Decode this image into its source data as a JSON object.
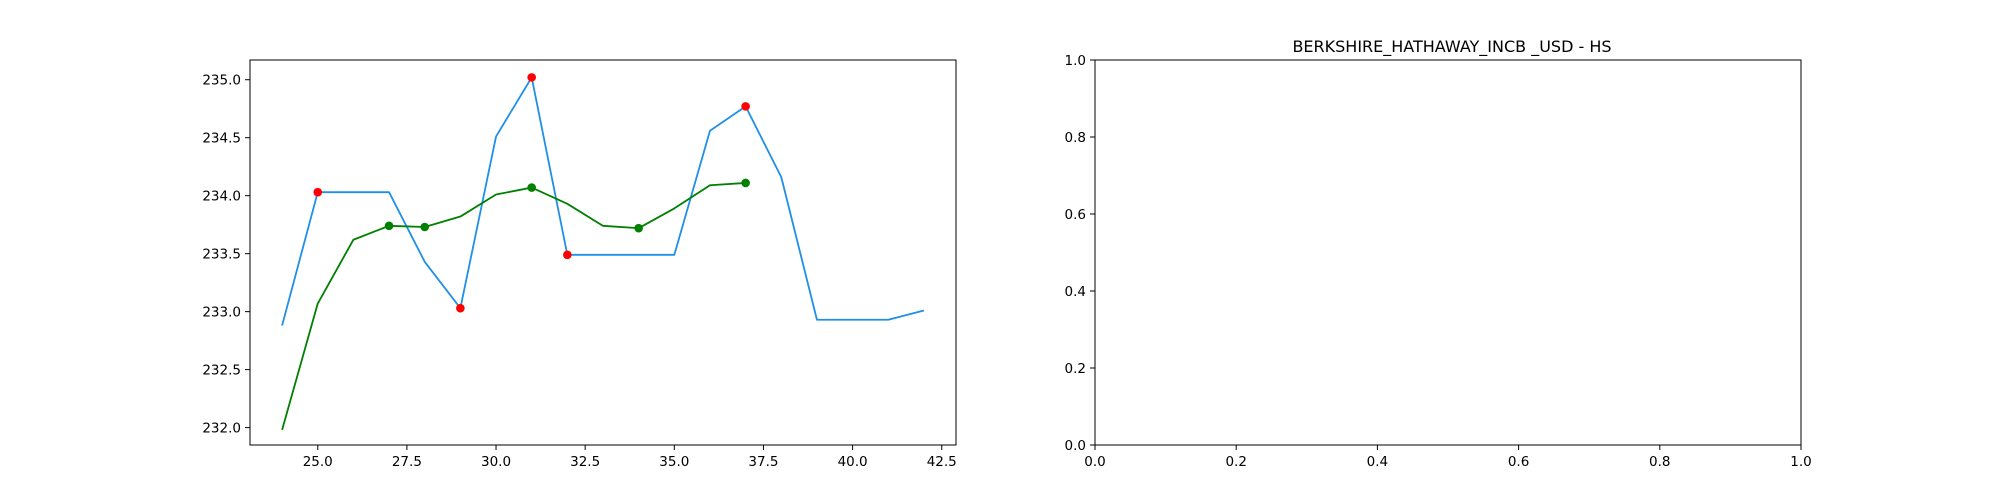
{
  "figure": {
    "background": "#ffffff"
  },
  "chart_data": [
    {
      "type": "line",
      "title": "",
      "xlabel": "",
      "ylabel": "",
      "xlim": [
        23.1,
        42.9
      ],
      "ylim": [
        231.85,
        235.17
      ],
      "xticks": [
        25.0,
        27.5,
        30.0,
        32.5,
        35.0,
        37.5,
        40.0,
        42.5
      ],
      "xtick_labels": [
        "25.0",
        "27.5",
        "30.0",
        "32.5",
        "35.0",
        "37.5",
        "40.0",
        "42.5"
      ],
      "yticks": [
        232.0,
        232.5,
        233.0,
        233.5,
        234.0,
        234.5,
        235.0
      ],
      "ytick_labels": [
        "232.0",
        "232.5",
        "233.0",
        "233.5",
        "234.0",
        "234.5",
        "235.0"
      ],
      "grid": false,
      "series": [
        {
          "kind": "line",
          "color": "#1f8fe8",
          "x": [
            24,
            25,
            26,
            27,
            28,
            29,
            30,
            31,
            32,
            33,
            34,
            35,
            36,
            37,
            38,
            39,
            40,
            41,
            42
          ],
          "y": [
            232.88,
            234.03,
            234.03,
            234.03,
            233.43,
            233.03,
            234.51,
            235.02,
            233.49,
            233.49,
            233.49,
            233.49,
            234.56,
            234.77,
            234.16,
            232.93,
            232.93,
            232.93,
            233.01
          ]
        },
        {
          "kind": "line",
          "color": "#008000",
          "x": [
            24,
            25,
            26,
            27,
            28,
            29,
            30,
            31,
            32,
            33,
            34,
            35,
            36,
            37
          ],
          "y": [
            231.98,
            233.07,
            233.62,
            233.74,
            233.73,
            233.82,
            234.01,
            234.07,
            233.93,
            233.74,
            233.72,
            233.89,
            234.09,
            234.11
          ]
        },
        {
          "kind": "scatter",
          "color": "#ff0000",
          "x": [
            25,
            29,
            31,
            32,
            37
          ],
          "y": [
            234.03,
            233.03,
            235.02,
            233.49,
            234.77
          ]
        },
        {
          "kind": "scatter",
          "color": "#008000",
          "x": [
            27,
            28,
            31,
            34,
            37
          ],
          "y": [
            233.74,
            233.73,
            234.07,
            233.72,
            234.11
          ]
        }
      ]
    },
    {
      "type": "line",
      "title": "BERKSHIRE_HATHAWAY_INCB _USD - HS",
      "xlabel": "",
      "ylabel": "",
      "xlim": [
        0.0,
        1.0
      ],
      "ylim": [
        0.0,
        1.0
      ],
      "xticks": [
        0.0,
        0.2,
        0.4,
        0.6,
        0.8,
        1.0
      ],
      "xtick_labels": [
        "0.0",
        "0.2",
        "0.4",
        "0.6",
        "0.8",
        "1.0"
      ],
      "yticks": [
        0.0,
        0.2,
        0.4,
        0.6,
        0.8,
        1.0
      ],
      "ytick_labels": [
        "0.0",
        "0.2",
        "0.4",
        "0.6",
        "0.8",
        "1.0"
      ],
      "grid": false,
      "series": []
    }
  ]
}
